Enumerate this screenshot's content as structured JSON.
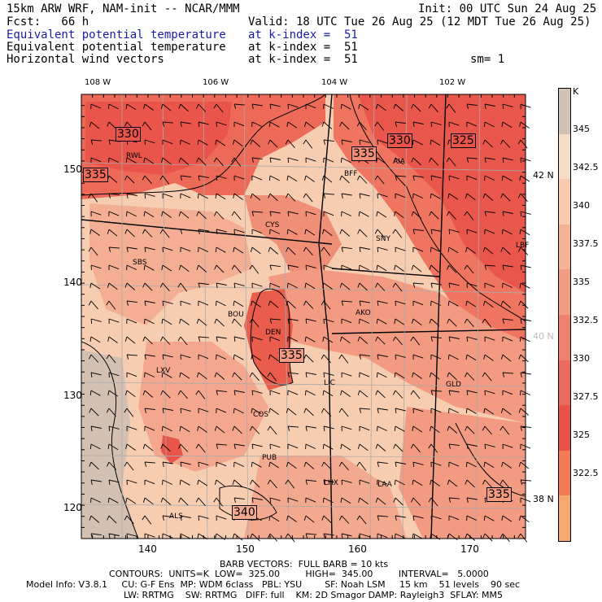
{
  "header": {
    "model_line": "15km ARW WRF, NAM-init -- NCAR/MMM",
    "init_line": "Init: 00 UTC Sun 24 Aug 25",
    "fcst_line": "Fcst:   66 h",
    "valid_line": "Valid: 18 UTC Tue 26 Aug 25 (12 MDT Tue 26 Aug 25)",
    "field1": "Equivalent potential temperature",
    "field2": "Equivalent potential temperature",
    "field3": "Horizontal wind vectors",
    "level1": "at k-index =  51",
    "level2": "at k-index =  51",
    "level3": "at k-index =  51",
    "smooth": "sm= 1"
  },
  "map": {
    "lon_labels": [
      "108 W",
      "106 W",
      "104 W",
      "102 W"
    ],
    "lat_labels": [
      "42 N",
      "40 N",
      "38 N"
    ],
    "grid_x_labels": [
      "140",
      "150",
      "160",
      "170"
    ],
    "grid_y_labels": [
      "150",
      "140",
      "130",
      "120"
    ],
    "contour_labels": [
      "330",
      "335",
      "335",
      "330",
      "325",
      "335",
      "340",
      "335"
    ],
    "stations": [
      "RWL",
      "BFF",
      "AIA",
      "CYS",
      "SNY",
      "LBF",
      "SBS",
      "BOU",
      "DEN",
      "AKO",
      "LXV",
      "LIC",
      "GLD",
      "COS",
      "PUB",
      "LHX",
      "LAA",
      "ALS"
    ]
  },
  "colorbar": {
    "unit": "K",
    "labels": [
      "345",
      "342.5",
      "340",
      "337.5",
      "335",
      "332.5",
      "330",
      "327.5",
      "325",
      "322.5"
    ],
    "colors": [
      "#d2c2b4",
      "#f7dcc4",
      "#f7c9ad",
      "#f4b296",
      "#f19c83",
      "#ee8270",
      "#eb6a5f",
      "#ea5148",
      "#f27a55",
      "#f6a870"
    ]
  },
  "footer": {
    "barb": "BARB VECTORS:  FULL BARB = 10 kts",
    "contours": "CONTOURS:  UNITS=K  LOW=  325.00         HIGH=  345.00         INTERVAL=   5.0000",
    "model1": "Model Info: V3.8.1     CU: G-F Ens  MP: WDM 6class   PBL: YSU        SF: Noah LSM     15 km    51 levels    90 sec",
    "model2": "LW: RRTMG    SW: RRTMG   DIFF: full    KM: 2D Smagor DAMP: Rayleigh3  SFLAY: MM5"
  }
}
